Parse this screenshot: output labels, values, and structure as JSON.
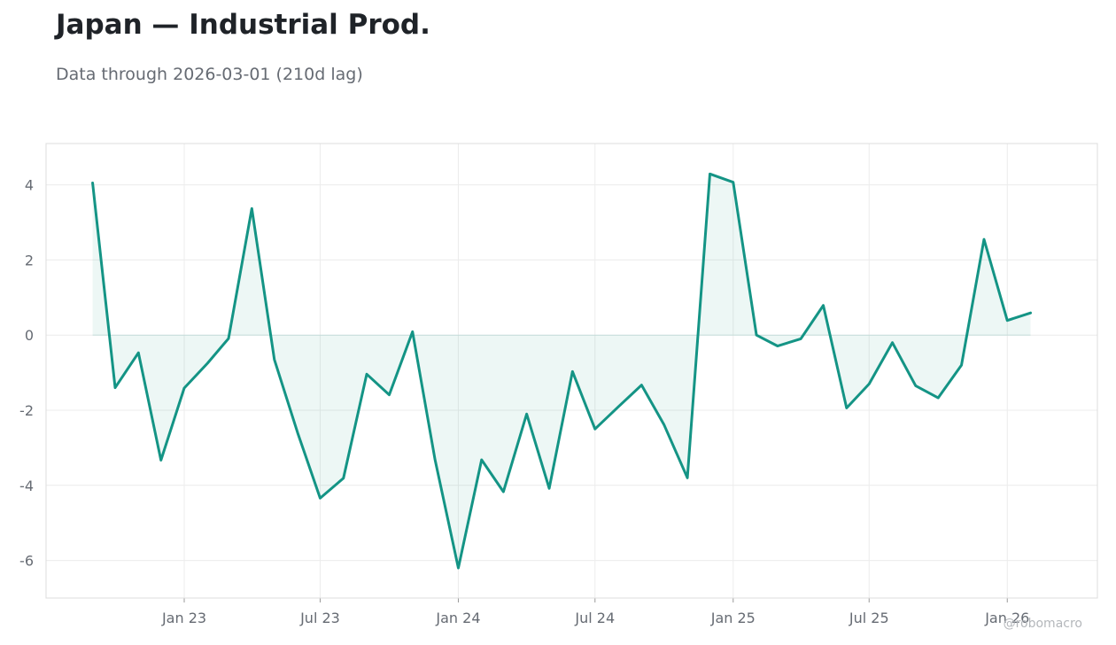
{
  "header": {
    "title": "Japan — Industrial Prod.",
    "subtitle": "Data through 2026-03-01 (210d lag)"
  },
  "watermark": "@robomacro",
  "colors": {
    "line": "#149485",
    "fill": "#149485",
    "grid": "#ececec",
    "frame": "#dcdcdc",
    "text": "#666b73"
  },
  "chart_data": {
    "type": "area",
    "title": "Japan — Industrial Prod.",
    "subtitle": "Data through 2026-03-01 (210d lag)",
    "xlabel": "",
    "ylabel": "",
    "ylim": [
      -7,
      5.1
    ],
    "xlim": [
      "2022-07-01",
      "2026-05-01"
    ],
    "yticks": [
      -6,
      -4,
      -2,
      0,
      2,
      4
    ],
    "xticks": [
      {
        "date": "2023-01-01",
        "label": "Jan 23"
      },
      {
        "date": "2023-07-01",
        "label": "Jul 23"
      },
      {
        "date": "2024-01-01",
        "label": "Jan 24"
      },
      {
        "date": "2024-07-01",
        "label": "Jul 24"
      },
      {
        "date": "2025-01-01",
        "label": "Jan 25"
      },
      {
        "date": "2025-07-01",
        "label": "Jul 25"
      },
      {
        "date": "2026-01-01",
        "label": "Jan 26"
      }
    ],
    "grid": true,
    "legend": "none",
    "series": [
      {
        "points": [
          [
            "2022-09-01",
            4.05
          ],
          [
            "2022-10-01",
            -1.4
          ],
          [
            "2022-11-01",
            -0.47
          ],
          [
            "2022-12-01",
            -3.33
          ],
          [
            "2023-01-01",
            -1.41
          ],
          [
            "2023-02-01",
            -0.75
          ],
          [
            "2023-03-01",
            -0.09
          ],
          [
            "2023-04-01",
            3.37
          ],
          [
            "2023-05-01",
            -0.65
          ],
          [
            "2023-06-01",
            -2.6
          ],
          [
            "2023-07-01",
            -4.34
          ],
          [
            "2023-08-01",
            -3.81
          ],
          [
            "2023-09-01",
            -1.04
          ],
          [
            "2023-10-01",
            -1.59
          ],
          [
            "2023-11-01",
            0.09
          ],
          [
            "2023-12-01",
            -3.32
          ],
          [
            "2024-01-01",
            -6.2
          ],
          [
            "2024-02-01",
            -3.32
          ],
          [
            "2024-03-01",
            -4.17
          ],
          [
            "2024-04-01",
            -2.1
          ],
          [
            "2024-05-01",
            -4.08
          ],
          [
            "2024-06-01",
            -0.97
          ],
          [
            "2024-07-01",
            -2.5
          ],
          [
            "2024-08-01",
            -1.91
          ],
          [
            "2024-09-01",
            -1.33
          ],
          [
            "2024-10-01",
            -2.39
          ],
          [
            "2024-11-01",
            -3.8
          ],
          [
            "2024-12-01",
            4.29
          ],
          [
            "2025-01-01",
            4.07
          ],
          [
            "2025-02-01",
            0.0
          ],
          [
            "2025-03-01",
            -0.29
          ],
          [
            "2025-04-01",
            -0.1
          ],
          [
            "2025-05-01",
            0.79
          ],
          [
            "2025-06-01",
            -1.94
          ],
          [
            "2025-07-01",
            -1.3
          ],
          [
            "2025-08-01",
            -0.2
          ],
          [
            "2025-09-01",
            -1.35
          ],
          [
            "2025-10-01",
            -1.67
          ],
          [
            "2025-11-01",
            -0.8
          ],
          [
            "2025-12-01",
            2.55
          ],
          [
            "2026-01-01",
            0.39
          ],
          [
            "2026-02-01",
            0.59
          ]
        ]
      }
    ]
  }
}
